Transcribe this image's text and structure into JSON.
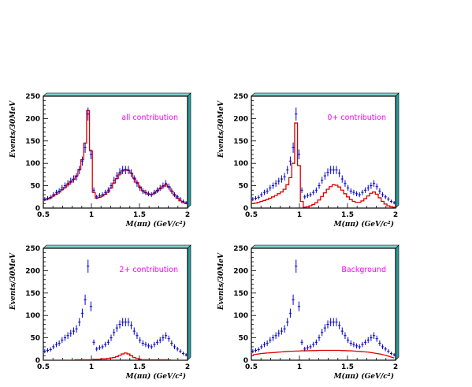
{
  "chart_data": [
    {
      "type": "scatter",
      "label": "all contribution",
      "xlabel": "M(ππ) (GeV/c²)",
      "ylabel": "Events/30MeV",
      "xlim": [
        0.5,
        2.0
      ],
      "ylim": [
        0,
        250
      ],
      "xticks": [
        "0.5",
        "1",
        "1.5",
        "2"
      ],
      "yticks": [
        "0",
        "50",
        "100",
        "150",
        "200",
        "250"
      ],
      "series": [
        {
          "kind": "data",
          "color": "#0000cc",
          "x": [
            0.515,
            0.545,
            0.575,
            0.605,
            0.635,
            0.665,
            0.695,
            0.725,
            0.755,
            0.785,
            0.815,
            0.845,
            0.875,
            0.905,
            0.935,
            0.965,
            0.995,
            1.025,
            1.055,
            1.085,
            1.115,
            1.145,
            1.175,
            1.205,
            1.235,
            1.265,
            1.295,
            1.325,
            1.355,
            1.385,
            1.415,
            1.445,
            1.475,
            1.505,
            1.535,
            1.565,
            1.595,
            1.625,
            1.655,
            1.685,
            1.715,
            1.745,
            1.775,
            1.805,
            1.835,
            1.865,
            1.895,
            1.925,
            1.955,
            1.985
          ],
          "y": [
            20,
            22,
            24,
            30,
            35,
            38,
            45,
            50,
            55,
            60,
            65,
            70,
            85,
            105,
            135,
            210,
            120,
            40,
            25,
            28,
            30,
            35,
            40,
            50,
            62,
            72,
            80,
            85,
            85,
            85,
            78,
            65,
            55,
            45,
            38,
            35,
            32,
            30,
            35,
            40,
            45,
            50,
            55,
            48,
            38,
            30,
            25,
            20,
            15,
            12
          ],
          "yerr": [
            4.5,
            4.7,
            4.9,
            5.5,
            5.9,
            6.2,
            6.7,
            7.1,
            7.4,
            7.7,
            8.1,
            8.4,
            9.2,
            10.2,
            11.6,
            14.5,
            11,
            6.3,
            5,
            5.3,
            5.5,
            5.9,
            6.3,
            7.1,
            7.9,
            8.5,
            8.9,
            9.2,
            9.2,
            9.2,
            8.8,
            8.1,
            7.4,
            6.7,
            6.2,
            5.9,
            5.7,
            5.5,
            5.9,
            6.3,
            6.7,
            7.1,
            7.4,
            6.9,
            6.2,
            5.5,
            5,
            4.5,
            3.9,
            3.5
          ]
        },
        {
          "kind": "fit",
          "color": "#dd0000",
          "values": [
            18,
            20,
            23,
            27,
            31,
            36,
            41,
            46,
            52,
            58,
            64,
            72,
            86,
            108,
            145,
            218,
            128,
            35,
            22,
            24,
            27,
            31,
            36,
            45,
            56,
            66,
            76,
            83,
            86,
            84,
            78,
            67,
            57,
            47,
            39,
            34,
            31,
            30,
            33,
            38,
            43,
            48,
            52,
            47,
            38,
            29,
            22,
            16,
            12,
            10
          ]
        }
      ]
    },
    {
      "type": "scatter",
      "label": "0+ contribution",
      "xlabel": "M(ππ) (GeV/c²)",
      "ylabel": "Events/30MeV",
      "xlim": [
        0.5,
        2.0
      ],
      "ylim": [
        0,
        250
      ],
      "xticks": [
        "0.5",
        "1",
        "1.5",
        "2"
      ],
      "yticks": [
        "0",
        "50",
        "100",
        "150",
        "200",
        "250"
      ],
      "series": [
        {
          "kind": "data",
          "color": "#0000cc",
          "x": [
            0.515,
            0.545,
            0.575,
            0.605,
            0.635,
            0.665,
            0.695,
            0.725,
            0.755,
            0.785,
            0.815,
            0.845,
            0.875,
            0.905,
            0.935,
            0.965,
            0.995,
            1.025,
            1.055,
            1.085,
            1.115,
            1.145,
            1.175,
            1.205,
            1.235,
            1.265,
            1.295,
            1.325,
            1.355,
            1.385,
            1.415,
            1.445,
            1.475,
            1.505,
            1.535,
            1.565,
            1.595,
            1.625,
            1.655,
            1.685,
            1.715,
            1.745,
            1.775,
            1.805,
            1.835,
            1.865,
            1.895,
            1.925,
            1.955,
            1.985
          ],
          "y": [
            20,
            22,
            24,
            30,
            35,
            38,
            45,
            50,
            55,
            60,
            65,
            70,
            85,
            105,
            135,
            210,
            120,
            40,
            25,
            28,
            30,
            35,
            40,
            50,
            62,
            72,
            80,
            85,
            85,
            85,
            78,
            65,
            55,
            45,
            38,
            35,
            32,
            30,
            35,
            40,
            45,
            50,
            55,
            48,
            38,
            30,
            25,
            20,
            15,
            12
          ],
          "yerr": [
            4.5,
            4.7,
            4.9,
            5.5,
            5.9,
            6.2,
            6.7,
            7.1,
            7.4,
            7.7,
            8.1,
            8.4,
            9.2,
            10.2,
            11.6,
            14.5,
            11,
            6.3,
            5,
            5.3,
            5.5,
            5.9,
            6.3,
            7.1,
            7.9,
            8.5,
            8.9,
            9.2,
            9.2,
            9.2,
            8.8,
            8.1,
            7.4,
            6.7,
            6.2,
            5.9,
            5.7,
            5.5,
            5.9,
            6.3,
            6.7,
            7.1,
            7.4,
            6.9,
            6.2,
            5.5,
            5,
            4.5,
            3.9,
            3.5
          ]
        },
        {
          "kind": "fit",
          "color": "#dd0000",
          "values": [
            10,
            11,
            13,
            15,
            17,
            19,
            22,
            25,
            28,
            32,
            36,
            42,
            52,
            68,
            100,
            190,
            95,
            15,
            2,
            3,
            5,
            8,
            12,
            18,
            26,
            34,
            42,
            48,
            52,
            51,
            47,
            40,
            32,
            25,
            19,
            15,
            13,
            13,
            16,
            21,
            27,
            33,
            36,
            31,
            23,
            15,
            9,
            5,
            3,
            2
          ]
        }
      ]
    },
    {
      "type": "scatter",
      "label": "2+ contribution",
      "xlabel": "M(ππ) (GeV/c²)",
      "ylabel": "Events/30MeV",
      "xlim": [
        0.5,
        2.0
      ],
      "ylim": [
        0,
        250
      ],
      "xticks": [
        "0.5",
        "1",
        "1.5",
        "2"
      ],
      "yticks": [
        "0",
        "50",
        "100",
        "150",
        "200",
        "250"
      ],
      "series": [
        {
          "kind": "data",
          "color": "#0000cc",
          "x": [
            0.515,
            0.545,
            0.575,
            0.605,
            0.635,
            0.665,
            0.695,
            0.725,
            0.755,
            0.785,
            0.815,
            0.845,
            0.875,
            0.905,
            0.935,
            0.965,
            0.995,
            1.025,
            1.055,
            1.085,
            1.115,
            1.145,
            1.175,
            1.205,
            1.235,
            1.265,
            1.295,
            1.325,
            1.355,
            1.385,
            1.415,
            1.445,
            1.475,
            1.505,
            1.535,
            1.565,
            1.595,
            1.625,
            1.655,
            1.685,
            1.715,
            1.745,
            1.775,
            1.805,
            1.835,
            1.865,
            1.895,
            1.925,
            1.955,
            1.985
          ],
          "y": [
            20,
            22,
            24,
            30,
            35,
            38,
            45,
            50,
            55,
            60,
            65,
            70,
            85,
            105,
            135,
            210,
            120,
            40,
            25,
            28,
            30,
            35,
            40,
            50,
            62,
            72,
            80,
            85,
            85,
            85,
            78,
            65,
            55,
            45,
            38,
            35,
            32,
            30,
            35,
            40,
            45,
            50,
            55,
            48,
            38,
            30,
            25,
            20,
            15,
            12
          ],
          "yerr": [
            4.5,
            4.7,
            4.9,
            5.5,
            5.9,
            6.2,
            6.7,
            7.1,
            7.4,
            7.7,
            8.1,
            8.4,
            9.2,
            10.2,
            11.6,
            14.5,
            11,
            6.3,
            5,
            5.3,
            5.5,
            5.9,
            6.3,
            7.1,
            7.9,
            8.5,
            8.9,
            9.2,
            9.2,
            9.2,
            8.8,
            8.1,
            7.4,
            6.7,
            6.2,
            5.9,
            5.7,
            5.5,
            5.9,
            6.3,
            6.7,
            7.1,
            7.4,
            6.9,
            6.2,
            5.5,
            5,
            4.5,
            3.9,
            3.5
          ]
        },
        {
          "kind": "fit",
          "color": "#dd0000",
          "values": [
            0,
            0,
            0,
            0,
            0,
            0,
            0,
            0,
            0,
            0,
            0,
            1,
            1,
            1,
            1,
            1,
            1,
            2,
            2,
            2,
            3,
            3,
            4,
            5,
            6,
            8,
            11,
            14,
            16,
            14,
            10,
            6,
            4,
            2,
            1,
            1,
            1,
            1,
            1,
            1,
            1,
            1,
            1,
            1,
            0,
            0,
            0,
            0,
            0,
            0
          ]
        }
      ]
    },
    {
      "type": "scatter",
      "label": "Background",
      "xlabel": "M(ππ) (GeV/c²)",
      "ylabel": "Events/30MeV",
      "xlim": [
        0.5,
        2.0
      ],
      "ylim": [
        0,
        250
      ],
      "xticks": [
        "0.5",
        "1",
        "1.5",
        "2"
      ],
      "yticks": [
        "0",
        "50",
        "100",
        "150",
        "200",
        "250"
      ],
      "series": [
        {
          "kind": "data",
          "color": "#0000cc",
          "x": [
            0.515,
            0.545,
            0.575,
            0.605,
            0.635,
            0.665,
            0.695,
            0.725,
            0.755,
            0.785,
            0.815,
            0.845,
            0.875,
            0.905,
            0.935,
            0.965,
            0.995,
            1.025,
            1.055,
            1.085,
            1.115,
            1.145,
            1.175,
            1.205,
            1.235,
            1.265,
            1.295,
            1.325,
            1.355,
            1.385,
            1.415,
            1.445,
            1.475,
            1.505,
            1.535,
            1.565,
            1.595,
            1.625,
            1.655,
            1.685,
            1.715,
            1.745,
            1.775,
            1.805,
            1.835,
            1.865,
            1.895,
            1.925,
            1.955,
            1.985
          ],
          "y": [
            20,
            22,
            24,
            30,
            35,
            38,
            45,
            50,
            55,
            60,
            65,
            70,
            85,
            105,
            135,
            210,
            120,
            40,
            25,
            28,
            30,
            35,
            40,
            50,
            62,
            72,
            80,
            85,
            85,
            85,
            78,
            65,
            55,
            45,
            38,
            35,
            32,
            30,
            35,
            40,
            45,
            50,
            55,
            48,
            38,
            30,
            25,
            20,
            15,
            12
          ],
          "yerr": [
            4.5,
            4.7,
            4.9,
            5.5,
            5.9,
            6.2,
            6.7,
            7.1,
            7.4,
            7.7,
            8.1,
            8.4,
            9.2,
            10.2,
            11.6,
            14.5,
            11,
            6.3,
            5,
            5.3,
            5.5,
            5.9,
            6.3,
            7.1,
            7.9,
            8.5,
            8.9,
            9.2,
            9.2,
            9.2,
            8.8,
            8.1,
            7.4,
            6.7,
            6.2,
            5.9,
            5.7,
            5.5,
            5.9,
            6.3,
            6.7,
            7.1,
            7.4,
            6.9,
            6.2,
            5.5,
            5,
            4.5,
            3.9,
            3.5
          ]
        },
        {
          "kind": "fit",
          "color": "#dd0000",
          "style": "smooth",
          "values": [
            12,
            13,
            14,
            15,
            15.5,
            16,
            16.5,
            17,
            17.5,
            18,
            18.5,
            19,
            19.5,
            20,
            20,
            20.5,
            20.5,
            21,
            21,
            21,
            21.5,
            21.5,
            21.5,
            22,
            22,
            22,
            22,
            22,
            22,
            22,
            22,
            21.5,
            21.5,
            21,
            21,
            20.5,
            20,
            19.5,
            19,
            18.5,
            18,
            17,
            16,
            15,
            14,
            12.5,
            11,
            9,
            7,
            5
          ]
        }
      ]
    }
  ]
}
